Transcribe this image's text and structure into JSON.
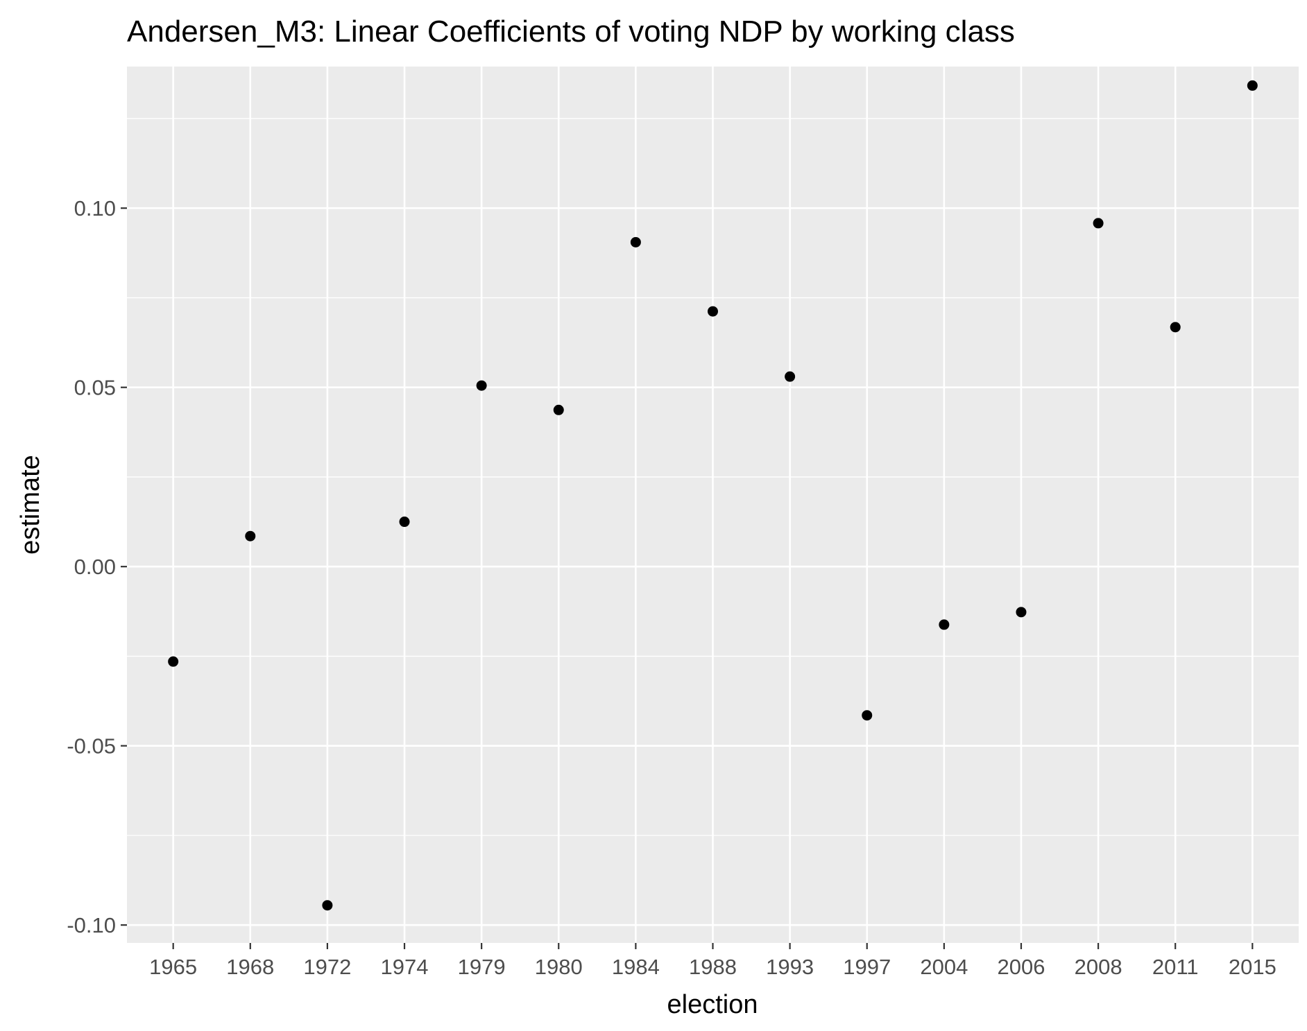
{
  "chart_data": {
    "type": "scatter",
    "title": "Andersen_M3: Linear Coefficients of voting NDP by working class",
    "xlabel": "election",
    "ylabel": "estimate",
    "categories": [
      "1965",
      "1968",
      "1972",
      "1974",
      "1979",
      "1980",
      "1984",
      "1988",
      "1993",
      "1997",
      "2004",
      "2006",
      "2008",
      "2011",
      "2015"
    ],
    "values": [
      -0.0265,
      0.0085,
      -0.0945,
      0.0125,
      0.0505,
      0.0437,
      0.0905,
      0.0712,
      0.053,
      -0.0415,
      -0.0162,
      -0.0127,
      0.0958,
      0.0668,
      0.1342
    ],
    "ylim": [
      -0.105,
      0.1395
    ],
    "yticks": [
      -0.1,
      -0.05,
      0.0,
      0.05,
      0.1
    ],
    "ytick_labels": [
      "-0.10",
      "-0.05",
      "0.00",
      "0.05",
      "0.10"
    ],
    "grid": true,
    "legend": "none",
    "colors": {
      "panel_background": "#ebebeb",
      "grid": "#ffffff",
      "point": "#000000",
      "tick_text": "#4d4d4d",
      "tick_mark": "#333333"
    }
  }
}
